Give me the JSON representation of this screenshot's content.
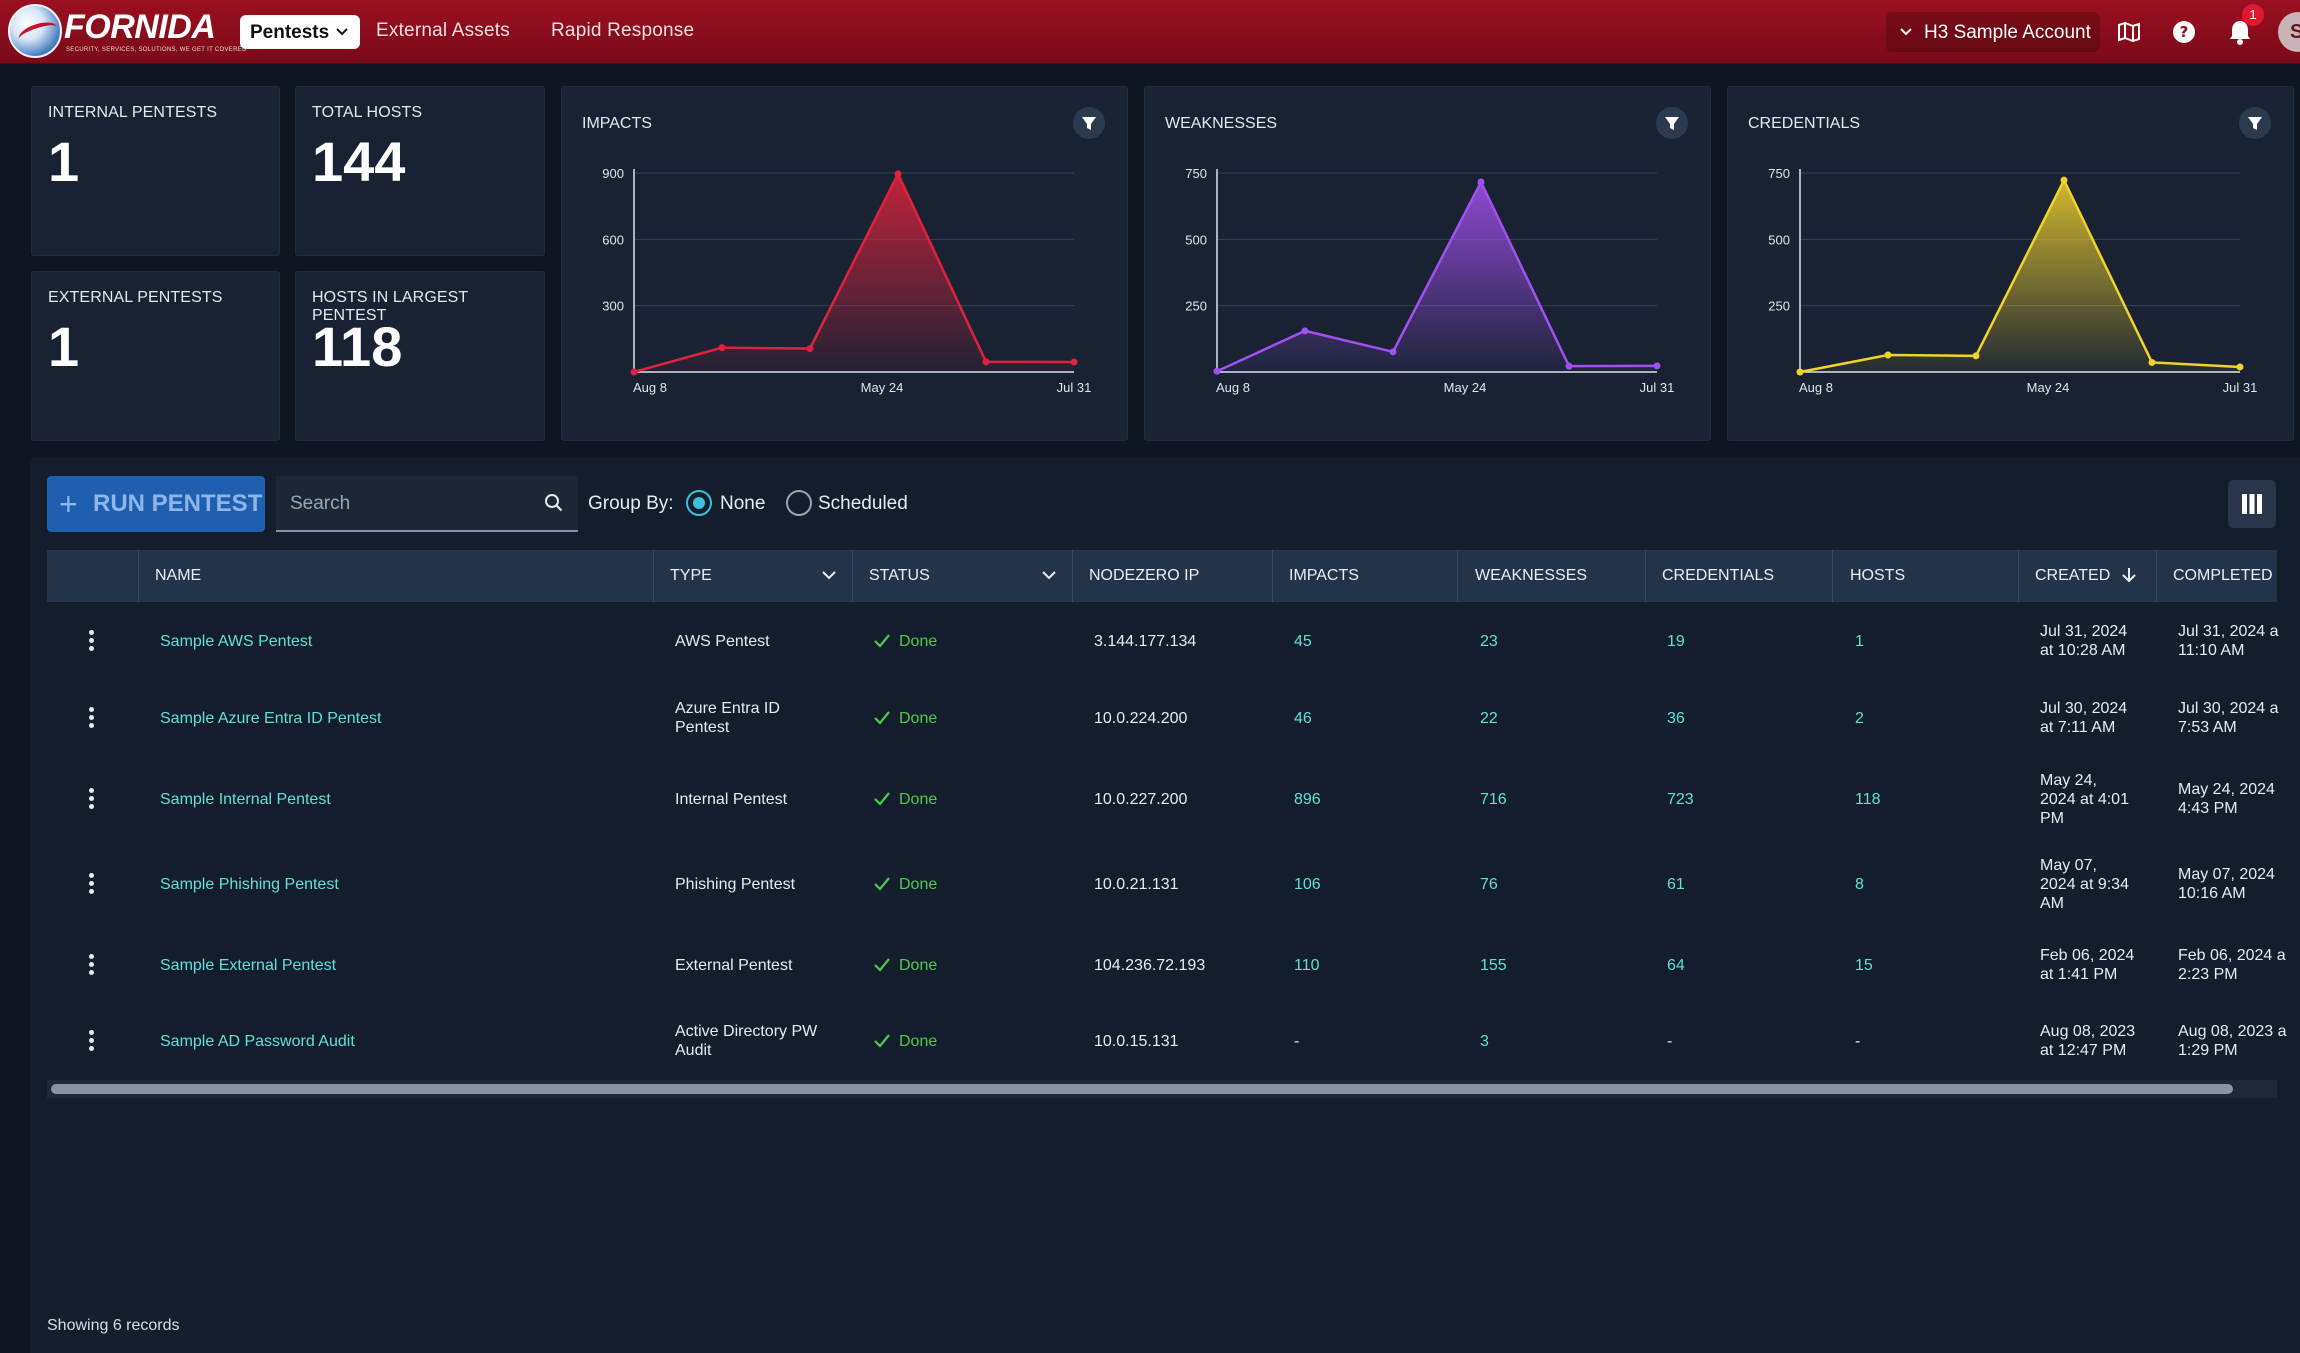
{
  "brand": {
    "name": "FORNIDA",
    "tagline": "SECURITY, SERVICES, SOLUTIONS, WE GET IT COVERED"
  },
  "nav": {
    "active": "Pentests",
    "links": [
      "External Assets",
      "Rapid Response"
    ]
  },
  "account": {
    "name": "H3 Sample Account",
    "notifications": "1",
    "avatar_initial": "S"
  },
  "stats": [
    {
      "label": "INTERNAL PENTESTS",
      "value": "1"
    },
    {
      "label": "TOTAL HOSTS",
      "value": "144"
    },
    {
      "label": "EXTERNAL PENTESTS",
      "value": "1"
    },
    {
      "label": "HOSTS IN LARGEST PENTEST",
      "value": "118"
    }
  ],
  "colors": {
    "impacts": "#e0223c",
    "weaknesses": "#a350f0",
    "credentials": "#f2d22c",
    "accent": "#5fe0dd",
    "status_done": "#4ec94f"
  },
  "charts": [
    {
      "title": "IMPACTS",
      "color_key": "impacts",
      "yticks": [
        "900",
        "600",
        "300"
      ],
      "ymax": 900,
      "xlabels": [
        "Aug 8",
        "May 24",
        "Jul 31"
      ],
      "values": [
        0,
        110,
        106,
        896,
        46,
        45
      ]
    },
    {
      "title": "WEAKNESSES",
      "color_key": "weaknesses",
      "yticks": [
        "750",
        "500",
        "250"
      ],
      "ymax": 750,
      "xlabels": [
        "Aug 8",
        "May 24",
        "Jul 31"
      ],
      "values": [
        3,
        155,
        76,
        716,
        22,
        23
      ]
    },
    {
      "title": "CREDENTIALS",
      "color_key": "credentials",
      "yticks": [
        "750",
        "500",
        "250"
      ],
      "ymax": 750,
      "xlabels": [
        "Aug 8",
        "May 24",
        "Jul 31"
      ],
      "values": [
        0,
        64,
        61,
        723,
        36,
        19
      ]
    }
  ],
  "chart_data": [
    {
      "type": "area",
      "title": "IMPACTS",
      "x": [
        "Aug 08, 2023",
        "Feb 06, 2024",
        "May 07, 2024",
        "May 24, 2024",
        "Jul 30, 2024",
        "Jul 31, 2024"
      ],
      "values": [
        0,
        110,
        106,
        896,
        46,
        45
      ],
      "ylim": [
        0,
        900
      ],
      "grid": true
    },
    {
      "type": "area",
      "title": "WEAKNESSES",
      "x": [
        "Aug 08, 2023",
        "Feb 06, 2024",
        "May 07, 2024",
        "May 24, 2024",
        "Jul 30, 2024",
        "Jul 31, 2024"
      ],
      "values": [
        3,
        155,
        76,
        716,
        22,
        23
      ],
      "ylim": [
        0,
        750
      ],
      "grid": true
    },
    {
      "type": "area",
      "title": "CREDENTIALS",
      "x": [
        "Aug 08, 2023",
        "Feb 06, 2024",
        "May 07, 2024",
        "May 24, 2024",
        "Jul 30, 2024",
        "Jul 31, 2024"
      ],
      "values": [
        0,
        64,
        61,
        723,
        36,
        19
      ],
      "ylim": [
        0,
        750
      ],
      "grid": true
    }
  ],
  "toolbar": {
    "run_label": "RUN PENTEST",
    "search_placeholder": "Search",
    "group_by_label": "Group By:",
    "group_none": "None",
    "group_scheduled": "Scheduled"
  },
  "table": {
    "columns": [
      "NAME",
      "TYPE",
      "STATUS",
      "NODEZERO IP",
      "IMPACTS",
      "WEAKNESSES",
      "CREDENTIALS",
      "HOSTS",
      "CREATED",
      "COMPLETED"
    ],
    "rows": [
      {
        "name": "Sample AWS Pentest",
        "type": [
          "AWS Pentest"
        ],
        "status": "Done",
        "ip": "3.144.177.134",
        "impacts": "45",
        "weaknesses": "23",
        "credentials": "19",
        "hosts": "1",
        "created": [
          "Jul 31, 2024",
          "at 10:28 AM"
        ],
        "completed": [
          "Jul 31, 2024 a",
          "11:10 AM"
        ]
      },
      {
        "name": "Sample Azure Entra ID Pentest",
        "type": [
          "Azure Entra ID",
          "Pentest"
        ],
        "status": "Done",
        "ip": "10.0.224.200",
        "impacts": "46",
        "weaknesses": "22",
        "credentials": "36",
        "hosts": "2",
        "created": [
          "Jul 30, 2024",
          "at 7:11 AM"
        ],
        "completed": [
          "Jul 30, 2024 a",
          "7:53 AM"
        ]
      },
      {
        "name": "Sample Internal Pentest",
        "type": [
          "Internal Pentest"
        ],
        "status": "Done",
        "ip": "10.0.227.200",
        "impacts": "896",
        "weaknesses": "716",
        "credentials": "723",
        "hosts": "118",
        "created": [
          "May 24,",
          "2024 at 4:01",
          "PM"
        ],
        "completed": [
          "May 24, 2024",
          "4:43 PM"
        ]
      },
      {
        "name": "Sample Phishing Pentest",
        "type": [
          "Phishing Pentest"
        ],
        "status": "Done",
        "ip": "10.0.21.131",
        "impacts": "106",
        "weaknesses": "76",
        "credentials": "61",
        "hosts": "8",
        "created": [
          "May 07,",
          "2024 at 9:34",
          "AM"
        ],
        "completed": [
          "May 07, 2024",
          "10:16 AM"
        ]
      },
      {
        "name": "Sample External Pentest",
        "type": [
          "External Pentest"
        ],
        "status": "Done",
        "ip": "104.236.72.193",
        "impacts": "110",
        "weaknesses": "155",
        "credentials": "64",
        "hosts": "15",
        "created": [
          "Feb 06, 2024",
          "at 1:41 PM"
        ],
        "completed": [
          "Feb 06, 2024 a",
          "2:23 PM"
        ]
      },
      {
        "name": "Sample AD Password Audit",
        "type": [
          "Active Directory PW",
          "Audit"
        ],
        "status": "Done",
        "ip": "10.0.15.131",
        "impacts": "-",
        "weaknesses": "3",
        "credentials": "-",
        "hosts": "-",
        "created": [
          "Aug 08, 2023",
          "at 12:47 PM"
        ],
        "completed": [
          "Aug 08, 2023 a",
          "1:29 PM"
        ]
      }
    ]
  },
  "footer": {
    "records": "Showing 6 records"
  }
}
